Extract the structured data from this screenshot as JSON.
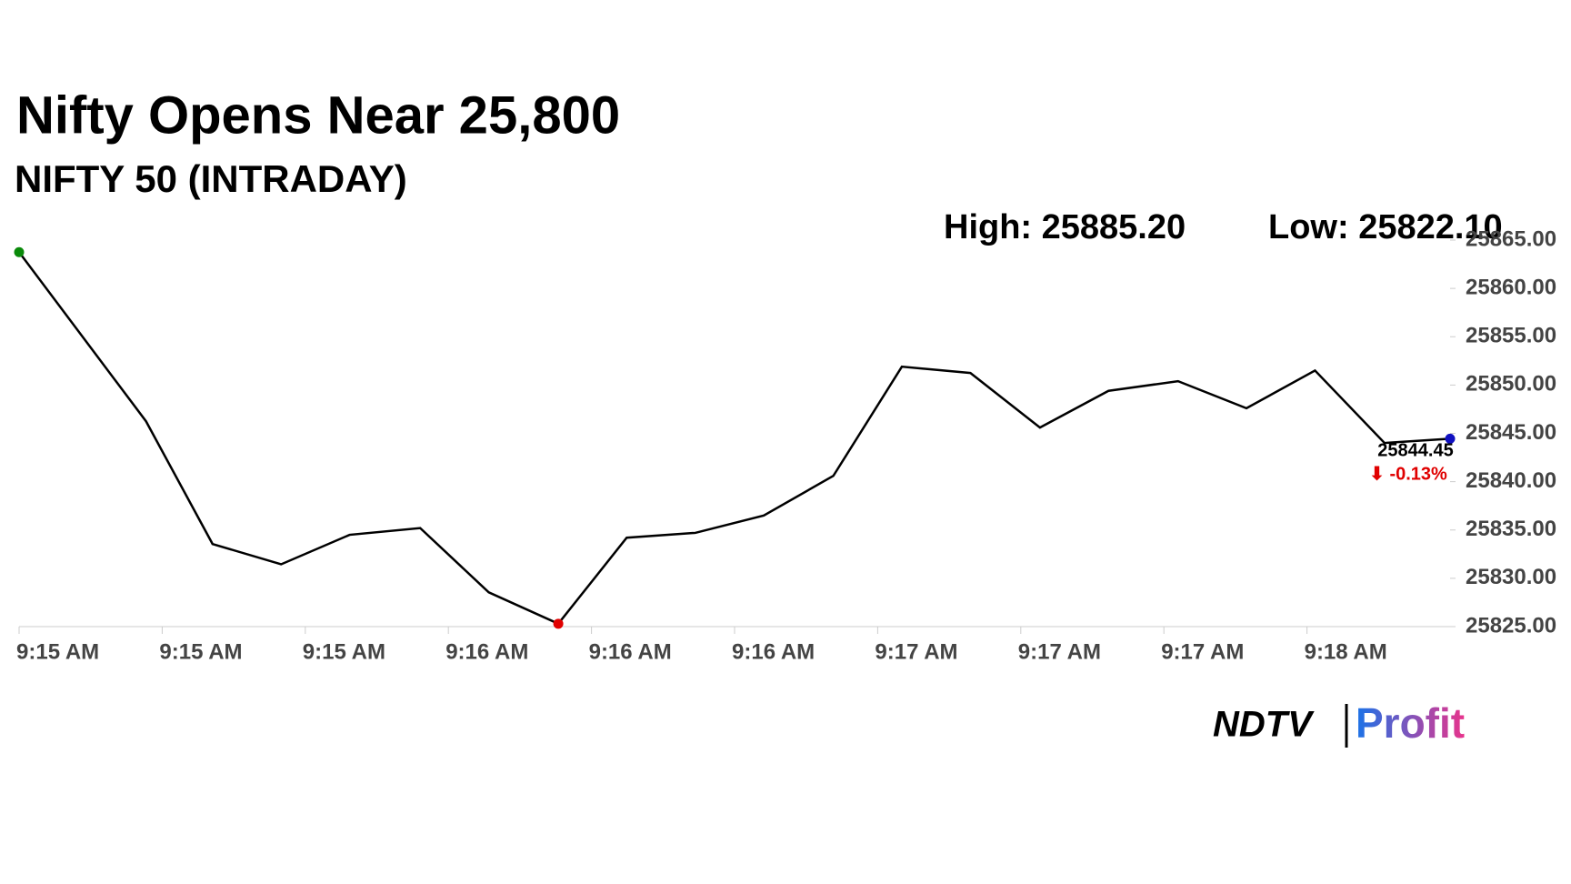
{
  "chart_data": {
    "type": "line",
    "title": "Nifty Opens Near 25,800",
    "subtitle": "NIFTY 50 (INTRADAY)",
    "high_label": "High: 25885.20",
    "low_label": "Low: 25822.10",
    "last_value_label": "25844.45",
    "change_label": "⬇ -0.13%",
    "logo": {
      "left": "NDTV",
      "right": "Profit"
    },
    "x": [
      0,
      0.887,
      1.352,
      1.831,
      2.31,
      2.803,
      3.282,
      3.768,
      4.246,
      4.725,
      5.204,
      5.69,
      6.169,
      6.648,
      7.134,
      7.613,
      8.099,
      8.577,
      9.056,
      9.542,
      10
    ],
    "series": [
      {
        "name": "NIFTY 50",
        "color": "#000000",
        "values": [
          25863.75,
          25846.25,
          25833.55,
          25831.45,
          25834.5,
          25835.2,
          25828.55,
          25825.3,
          25834.2,
          25834.7,
          25836.5,
          25840.6,
          25851.9,
          25851.25,
          25845.6,
          25849.4,
          25850.4,
          25847.6,
          25851.5,
          25844.0,
          25844.45
        ]
      }
    ],
    "open_marker_color": "#0a8a0a",
    "low_marker_color": "#e00000",
    "last_marker_color": "#1010c0",
    "change_color": "#e00000",
    "xlim": [
      0,
      10
    ],
    "xticks": [
      {
        "value": 0,
        "label": "9:15 AM"
      },
      {
        "value": 1,
        "label": "9:15 AM"
      },
      {
        "value": 2,
        "label": "9:15 AM"
      },
      {
        "value": 3,
        "label": "9:16 AM"
      },
      {
        "value": 4,
        "label": "9:16 AM"
      },
      {
        "value": 5,
        "label": "9:16 AM"
      },
      {
        "value": 6,
        "label": "9:17 AM"
      },
      {
        "value": 7,
        "label": "9:17 AM"
      },
      {
        "value": 8,
        "label": "9:17 AM"
      },
      {
        "value": 9,
        "label": "9:18 AM"
      }
    ],
    "ylim": [
      25825,
      25865
    ],
    "yticks": [
      {
        "value": 25825,
        "label": "25825.00"
      },
      {
        "value": 25830,
        "label": "25830.00"
      },
      {
        "value": 25835,
        "label": "25835.00"
      },
      {
        "value": 25840,
        "label": "25840.00"
      },
      {
        "value": 25845,
        "label": "25845.00"
      },
      {
        "value": 25850,
        "label": "25850.00"
      },
      {
        "value": 25855,
        "label": "25855.00"
      },
      {
        "value": 25860,
        "label": "25860.00"
      },
      {
        "value": 25865,
        "label": "25865.00"
      }
    ]
  }
}
